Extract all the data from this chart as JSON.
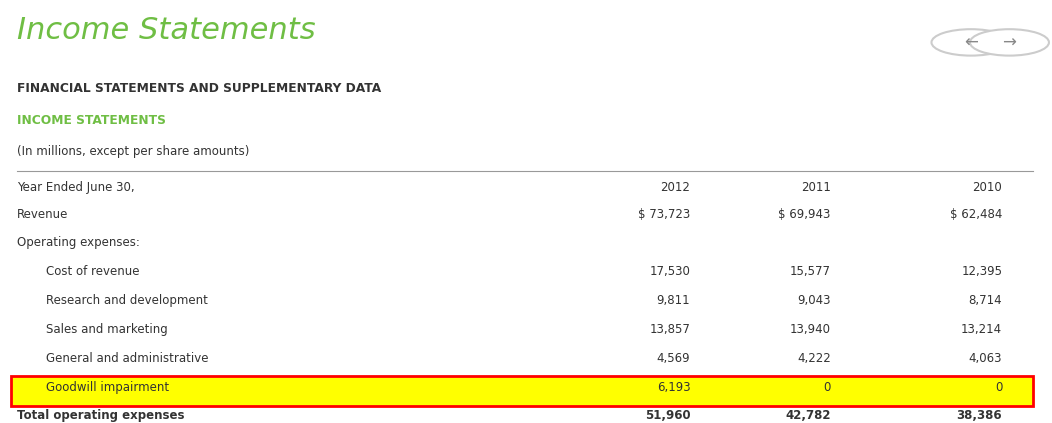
{
  "title": "Income Statements",
  "subtitle1": "FINANCIAL STATEMENTS AND SUPPLEMENTARY DATA",
  "subtitle2": "INCOME STATEMENTS",
  "subtitle3": "(In millions, except per share amounts)",
  "header_col": "Year Ended June 30,",
  "years": [
    "2012",
    "2011",
    "2010"
  ],
  "rows": [
    {
      "label": "Revenue",
      "values": [
        "$ 73,723",
        "$ 69,943",
        "$ 62,484"
      ],
      "indent": 0,
      "bold": false,
      "highlight": false
    },
    {
      "label": "Operating expenses:",
      "values": [
        "",
        "",
        ""
      ],
      "indent": 0,
      "bold": false,
      "highlight": false
    },
    {
      "label": "Cost of revenue",
      "values": [
        "17,530",
        "15,577",
        "12,395"
      ],
      "indent": 1,
      "bold": false,
      "highlight": false
    },
    {
      "label": "Research and development",
      "values": [
        "9,811",
        "9,043",
        "8,714"
      ],
      "indent": 1,
      "bold": false,
      "highlight": false
    },
    {
      "label": "Sales and marketing",
      "values": [
        "13,857",
        "13,940",
        "13,214"
      ],
      "indent": 1,
      "bold": false,
      "highlight": false
    },
    {
      "label": "General and administrative",
      "values": [
        "4,569",
        "4,222",
        "4,063"
      ],
      "indent": 1,
      "bold": false,
      "highlight": false
    },
    {
      "label": "Goodwill impairment",
      "values": [
        "6,193",
        "0",
        "0"
      ],
      "indent": 1,
      "bold": false,
      "highlight": true
    },
    {
      "label": "Total operating expenses",
      "values": [
        "51,960",
        "42,782",
        "38,386"
      ],
      "indent": 0,
      "bold": true,
      "highlight": false
    }
  ],
  "title_color": "#6fbe44",
  "subtitle2_color": "#6fbe44",
  "highlight_bg": "#ffff00",
  "highlight_border": "#ff0000",
  "text_color": "#333333",
  "header_color": "#333333",
  "bg_color": "#ffffff",
  "divider_color": "#999999",
  "nav_circle_color": "#cccccc",
  "nav_arrow_color": "#888888"
}
